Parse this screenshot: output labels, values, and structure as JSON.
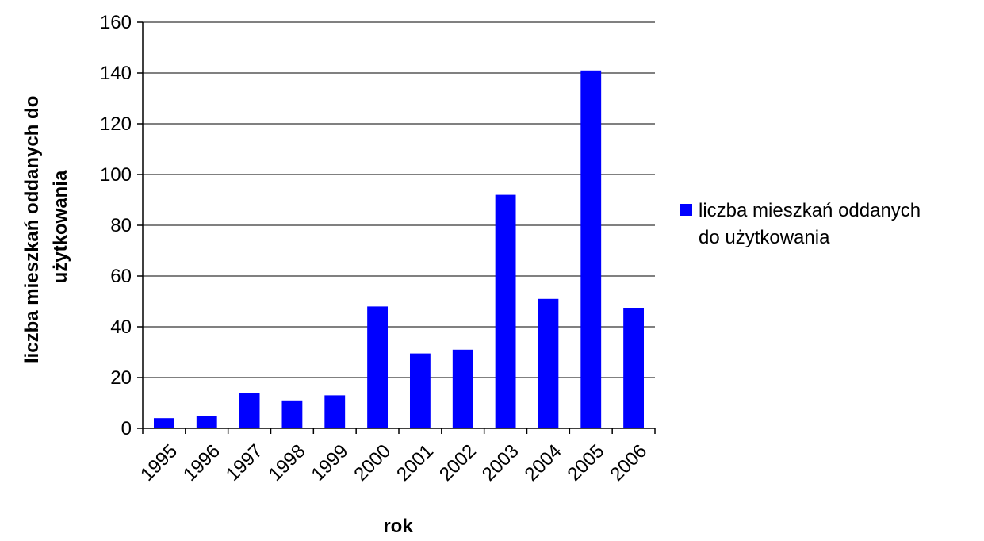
{
  "chart_data": {
    "type": "bar",
    "categories": [
      "1995",
      "1996",
      "1997",
      "1998",
      "1999",
      "2000",
      "2001",
      "2002",
      "2003",
      "2004",
      "2005",
      "2006"
    ],
    "series": [
      {
        "name": "liczba mieszkań oddanych do użytkowania",
        "values": [
          4,
          5,
          14,
          11,
          13,
          48,
          29.5,
          31,
          92,
          51,
          141,
          47.5
        ],
        "color": "#0000ff"
      }
    ],
    "xlabel": "rok",
    "ylabel_lines": [
      "liczba mieszkań oddanych do",
      "użytkowania"
    ],
    "legend_lines": [
      "liczba mieszkań oddanych",
      "do użytkowania"
    ],
    "ylim": [
      0,
      160
    ],
    "yticks": [
      0,
      20,
      40,
      60,
      80,
      100,
      120,
      140,
      160
    ],
    "grid": true,
    "legend_position": "right"
  }
}
